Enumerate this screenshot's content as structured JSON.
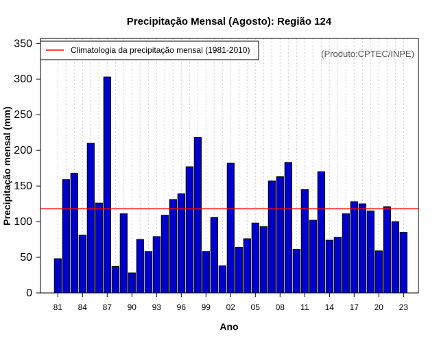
{
  "chart_data": {
    "type": "bar",
    "title": "Precipitação Mensal (Agosto): Região 124",
    "xlabel": "Ano",
    "ylabel": "Precipitação mensal (mm)",
    "ylim": [
      0,
      350
    ],
    "yticks": [
      0,
      50,
      100,
      150,
      200,
      250,
      300,
      350
    ],
    "xtick_labels": [
      "81",
      "84",
      "87",
      "90",
      "93",
      "96",
      "99",
      "02",
      "05",
      "08",
      "11",
      "14",
      "17",
      "20",
      "23"
    ],
    "grid": "vertical-dashed",
    "categories": [
      "1981",
      "1982",
      "1983",
      "1984",
      "1985",
      "1986",
      "1987",
      "1988",
      "1989",
      "1990",
      "1991",
      "1992",
      "1993",
      "1994",
      "1995",
      "1996",
      "1997",
      "1998",
      "1999",
      "2000",
      "2001",
      "2002",
      "2003",
      "2004",
      "2005",
      "2006",
      "2007",
      "2008",
      "2009",
      "2010",
      "2011",
      "2012",
      "2013",
      "2014",
      "2015",
      "2016",
      "2017",
      "2018",
      "2019",
      "2020",
      "2021",
      "2022",
      "2023"
    ],
    "series": [
      {
        "name": "Precipitação mensal",
        "color": "#0000CD",
        "values": [
          48,
          159,
          168,
          81,
          210,
          126,
          303,
          37,
          111,
          28,
          75,
          58,
          79,
          109,
          131,
          139,
          177,
          218,
          58,
          106,
          38,
          182,
          64,
          76,
          98,
          93,
          157,
          163,
          183,
          61,
          145,
          102,
          170,
          74,
          78,
          111,
          128,
          125,
          115,
          59,
          121,
          100,
          85
        ]
      }
    ],
    "climatology": {
      "label": "Climatologia da precipitação mensal (1981-2010)",
      "value": 118,
      "color": "#FF0000"
    },
    "legend_position": "top-left",
    "credit": "(Produto:CPTEC/INPE)"
  }
}
